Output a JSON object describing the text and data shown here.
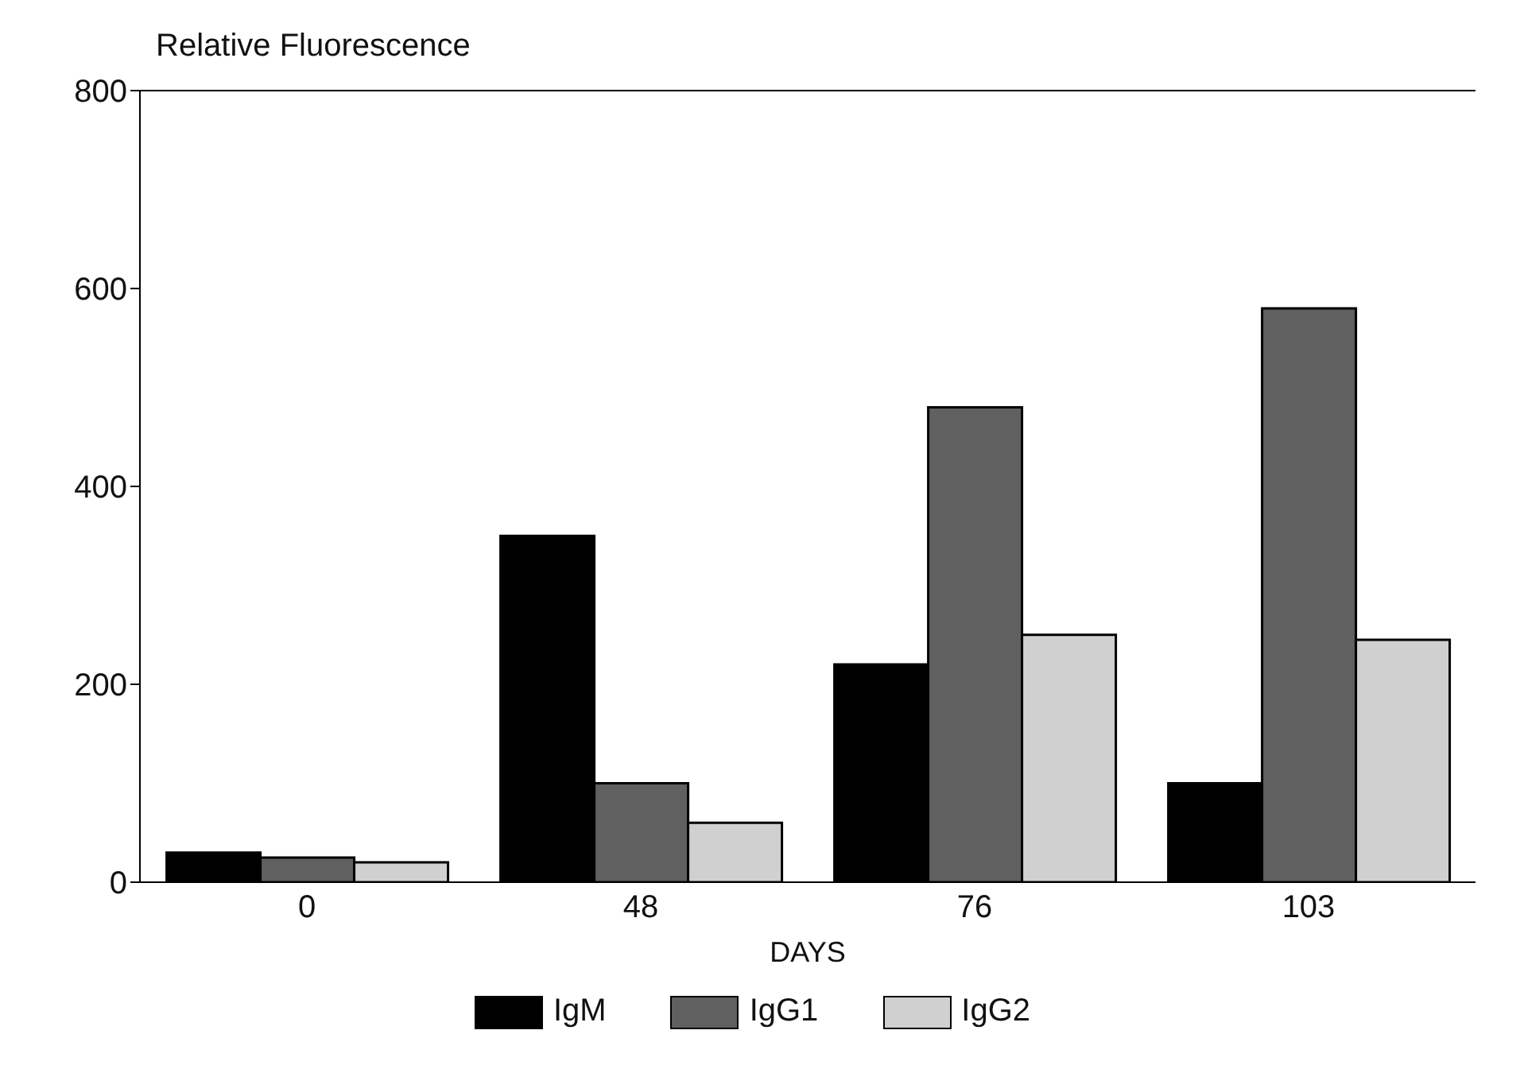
{
  "chart_data": {
    "type": "bar",
    "ylabel": "Relative Fluorescence",
    "xlabel": "DAYS",
    "categories": [
      "0",
      "48",
      "76",
      "103"
    ],
    "series": [
      {
        "name": "IgM",
        "color": "#000000",
        "values": [
          30,
          350,
          220,
          100
        ]
      },
      {
        "name": "IgG1",
        "color": "#606060",
        "values": [
          25,
          100,
          480,
          580
        ]
      },
      {
        "name": "IgG2",
        "color": "#d0d0d0",
        "values": [
          20,
          60,
          250,
          245
        ]
      }
    ],
    "ylim": [
      0,
      800
    ],
    "yticks": [
      0,
      200,
      400,
      600,
      800
    ],
    "legend": "bottom"
  }
}
